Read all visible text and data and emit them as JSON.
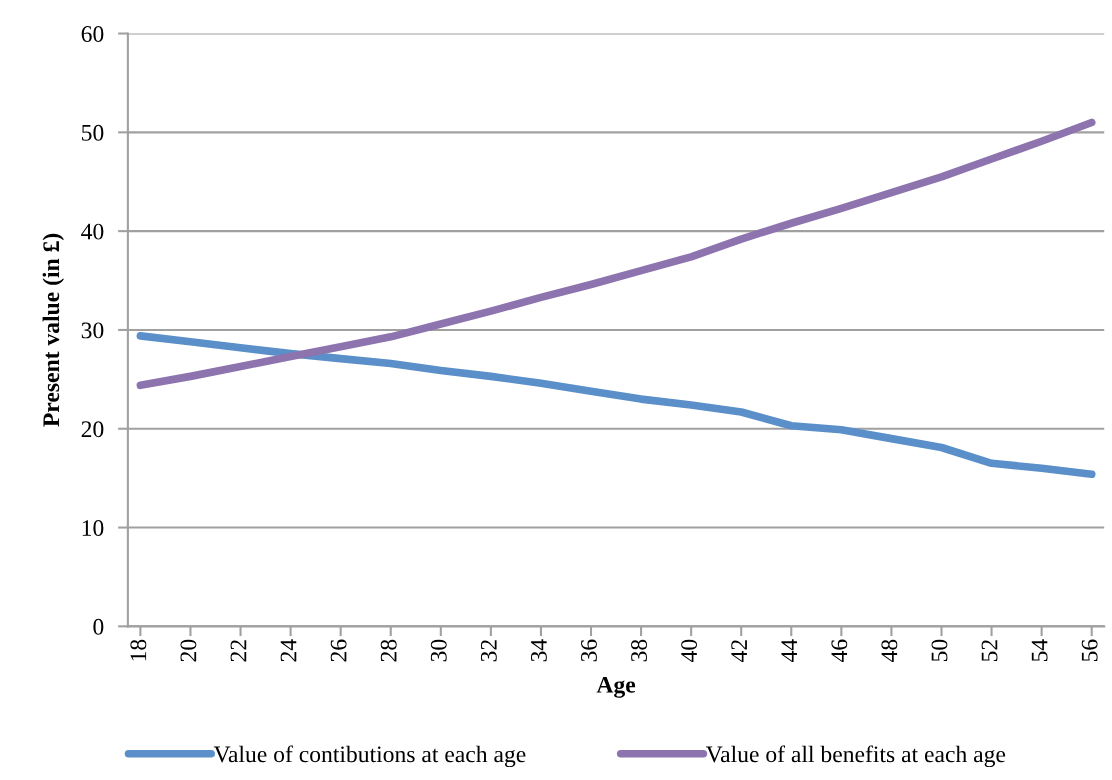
{
  "chart_data": {
    "type": "line",
    "xlabel": "Age",
    "ylabel": "Present value (in £)",
    "xlim": [
      17.5,
      56.5
    ],
    "ylim": [
      0,
      60
    ],
    "yticks": [
      0,
      10,
      20,
      30,
      40,
      50,
      60
    ],
    "xticks": [
      18,
      20,
      22,
      24,
      26,
      28,
      30,
      32,
      34,
      36,
      38,
      40,
      42,
      44,
      46,
      48,
      50,
      52,
      54,
      56
    ],
    "x": [
      18,
      20,
      22,
      24,
      26,
      28,
      30,
      32,
      34,
      36,
      38,
      40,
      42,
      44,
      46,
      48,
      50,
      52,
      54,
      56
    ],
    "grid": "y",
    "legend": "bottom",
    "marker": "none",
    "line_style": "solid",
    "series": [
      {
        "name": "Value of contibutions at each age",
        "color": "#5b8fc9",
        "values": [
          29.4,
          28.8,
          28.2,
          27.6,
          27.1,
          26.6,
          25.9,
          25.3,
          24.6,
          23.8,
          23.0,
          22.4,
          21.7,
          20.3,
          19.9,
          19.0,
          18.1,
          16.5,
          16.0,
          15.4
        ]
      },
      {
        "name": "Value of all benefits at each age",
        "color": "#8e74ae",
        "values": [
          24.4,
          25.3,
          26.3,
          27.3,
          28.3,
          29.3,
          30.6,
          31.9,
          33.3,
          34.6,
          36.0,
          37.4,
          39.2,
          40.8,
          42.3,
          43.9,
          45.5,
          47.3,
          49.1,
          51.0
        ]
      }
    ]
  }
}
